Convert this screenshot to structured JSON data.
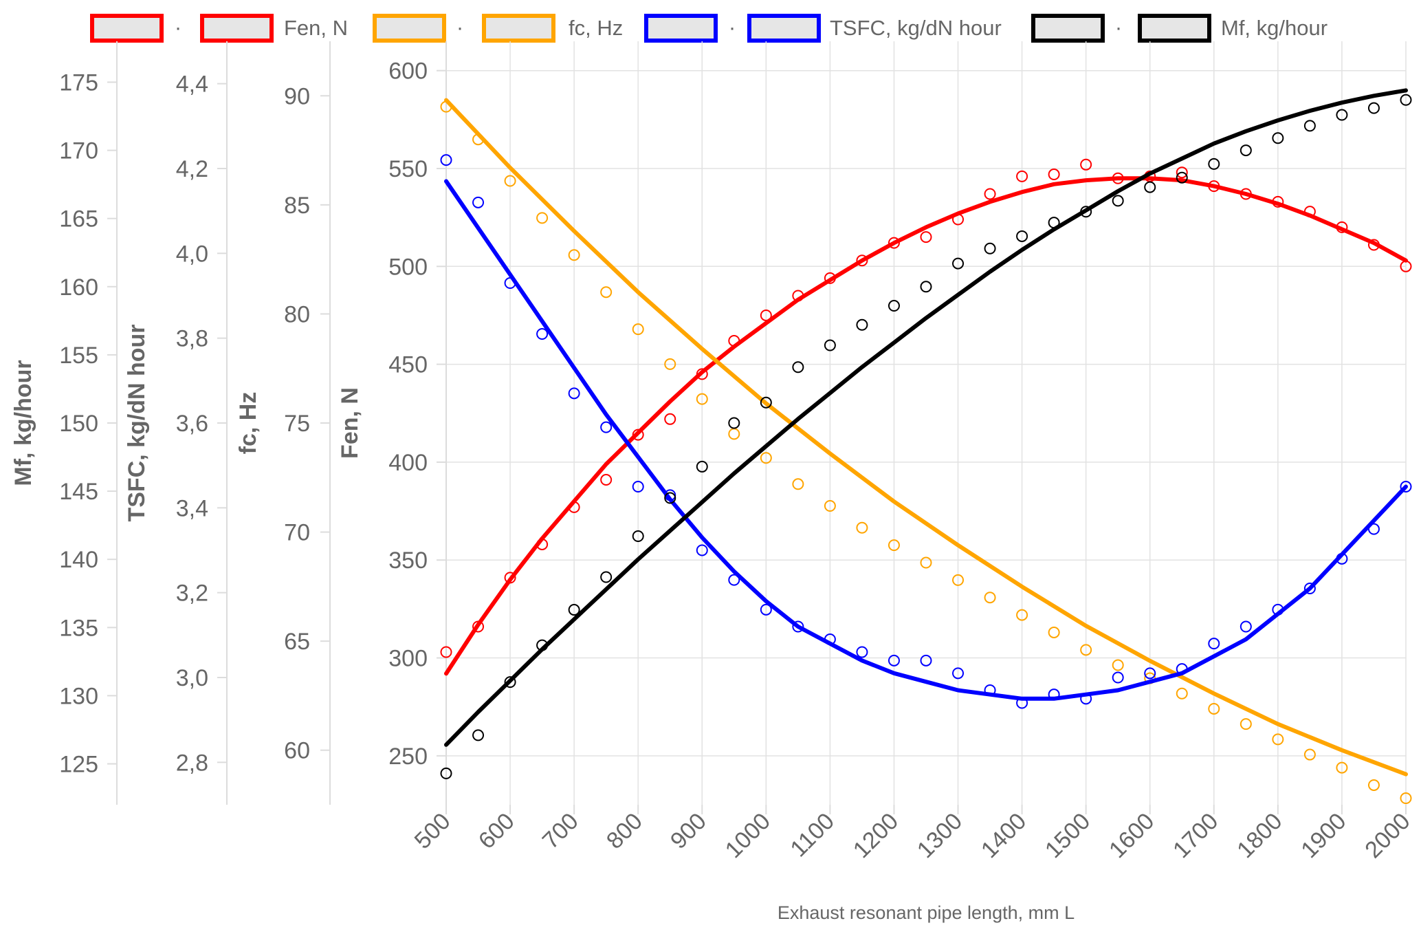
{
  "chart_data": {
    "type": "line",
    "x_title": "Exhaust resonant pipe length, mm L",
    "x_ticks": [
      500,
      600,
      700,
      800,
      900,
      1000,
      1100,
      1200,
      1300,
      1400,
      1500,
      1600,
      1700,
      1800,
      1900,
      2000
    ],
    "x_range": [
      500,
      2000
    ],
    "grid": true,
    "legend_position": "top",
    "legend": [
      {
        "marker_label": "·",
        "label": "Fen, N",
        "color": "#ff0000"
      },
      {
        "marker_label": "·",
        "label": "fc, Hz",
        "color": "#ffa500"
      },
      {
        "marker_label": "·",
        "label": "TSFC, kg/dN hour",
        "color": "#0000ff"
      },
      {
        "marker_label": "·",
        "label": "Mf, kg/hour",
        "color": "#000000"
      }
    ],
    "axes": {
      "mf": {
        "title": "Mf, kg/hour",
        "range": [
          122,
          178
        ],
        "ticks": [
          "125",
          "130",
          "135",
          "140",
          "145",
          "150",
          "155",
          "160",
          "165",
          "170",
          "175"
        ]
      },
      "tsfc": {
        "title": "TSFC, kg/dN hour",
        "range": [
          2.7,
          4.5
        ],
        "ticks": [
          "2,8",
          "3,0",
          "3,2",
          "3,4",
          "3,6",
          "3,8",
          "4,0",
          "4,2",
          "4,4"
        ]
      },
      "fc": {
        "title": "fc, Hz",
        "range": [
          57.5,
          92.5
        ],
        "ticks": [
          "60",
          "65",
          "70",
          "75",
          "80",
          "85",
          "90"
        ]
      },
      "fen": {
        "title": "Fen, N",
        "range": [
          225,
          615
        ],
        "ticks": [
          "250",
          "300",
          "350",
          "400",
          "450",
          "500",
          "550",
          "600"
        ]
      }
    },
    "series": [
      {
        "name": "Fen, N",
        "axis": "fen",
        "color": "#ff0000",
        "points": [
          [
            500,
            303
          ],
          [
            550,
            316
          ],
          [
            600,
            341
          ],
          [
            650,
            358
          ],
          [
            700,
            377
          ],
          [
            750,
            391
          ],
          [
            800,
            414
          ],
          [
            850,
            422
          ],
          [
            900,
            445
          ],
          [
            950,
            462
          ],
          [
            1000,
            475
          ],
          [
            1050,
            485
          ],
          [
            1100,
            494
          ],
          [
            1150,
            503
          ],
          [
            1200,
            512
          ],
          [
            1250,
            515
          ],
          [
            1300,
            524
          ],
          [
            1350,
            537
          ],
          [
            1400,
            546
          ],
          [
            1450,
            547
          ],
          [
            1500,
            552
          ],
          [
            1550,
            545
          ],
          [
            1600,
            546
          ],
          [
            1650,
            548
          ],
          [
            1700,
            541
          ],
          [
            1750,
            537
          ],
          [
            1800,
            533
          ],
          [
            1850,
            528
          ],
          [
            1900,
            520
          ],
          [
            1950,
            511
          ],
          [
            2000,
            500
          ]
        ],
        "fit": [
          [
            500,
            292
          ],
          [
            550,
            317
          ],
          [
            600,
            340
          ],
          [
            650,
            361
          ],
          [
            700,
            380
          ],
          [
            750,
            399
          ],
          [
            800,
            415
          ],
          [
            850,
            431
          ],
          [
            900,
            446
          ],
          [
            950,
            459
          ],
          [
            1000,
            471
          ],
          [
            1050,
            483
          ],
          [
            1100,
            493
          ],
          [
            1150,
            503
          ],
          [
            1200,
            512
          ],
          [
            1250,
            520
          ],
          [
            1300,
            527
          ],
          [
            1350,
            533
          ],
          [
            1400,
            538
          ],
          [
            1450,
            542
          ],
          [
            1500,
            544
          ],
          [
            1550,
            545
          ],
          [
            1600,
            545
          ],
          [
            1650,
            544
          ],
          [
            1700,
            541
          ],
          [
            1750,
            537
          ],
          [
            1800,
            532
          ],
          [
            1850,
            526
          ],
          [
            1900,
            519
          ],
          [
            1950,
            512
          ],
          [
            2000,
            503
          ]
        ]
      },
      {
        "name": "fc, Hz",
        "axis": "fc",
        "color": "#ffa500",
        "points": [
          [
            500,
            89.5
          ],
          [
            550,
            88.0
          ],
          [
            600,
            86.1
          ],
          [
            650,
            84.4
          ],
          [
            700,
            82.7
          ],
          [
            750,
            81.0
          ],
          [
            800,
            79.3
          ],
          [
            850,
            77.7
          ],
          [
            900,
            76.1
          ],
          [
            950,
            74.5
          ],
          [
            1000,
            73.4
          ],
          [
            1050,
            72.2
          ],
          [
            1100,
            71.2
          ],
          [
            1150,
            70.2
          ],
          [
            1200,
            69.4
          ],
          [
            1250,
            68.6
          ],
          [
            1300,
            67.8
          ],
          [
            1350,
            67.0
          ],
          [
            1400,
            66.2
          ],
          [
            1450,
            65.4
          ],
          [
            1500,
            64.6
          ],
          [
            1550,
            63.9
          ],
          [
            1600,
            63.3
          ],
          [
            1650,
            62.6
          ],
          [
            1700,
            61.9
          ],
          [
            1750,
            61.2
          ],
          [
            1800,
            60.5
          ],
          [
            1850,
            59.8
          ],
          [
            1900,
            59.2
          ],
          [
            1950,
            58.4
          ],
          [
            2000,
            57.8
          ]
        ],
        "fit": [
          [
            500,
            89.8
          ],
          [
            600,
            86.7
          ],
          [
            700,
            83.8
          ],
          [
            800,
            81.0
          ],
          [
            900,
            78.4
          ],
          [
            1000,
            75.9
          ],
          [
            1100,
            73.6
          ],
          [
            1200,
            71.4
          ],
          [
            1300,
            69.4
          ],
          [
            1400,
            67.5
          ],
          [
            1500,
            65.7
          ],
          [
            1600,
            64.1
          ],
          [
            1700,
            62.6
          ],
          [
            1800,
            61.2
          ],
          [
            1900,
            60.0
          ],
          [
            2000,
            58.9
          ]
        ]
      },
      {
        "name": "TSFC, kg/dN hour",
        "axis": "tsfc",
        "color": "#0000ff",
        "points": [
          [
            500,
            4.22
          ],
          [
            550,
            4.12
          ],
          [
            600,
            3.93
          ],
          [
            650,
            3.81
          ],
          [
            700,
            3.67
          ],
          [
            750,
            3.59
          ],
          [
            800,
            3.45
          ],
          [
            850,
            3.43
          ],
          [
            900,
            3.3
          ],
          [
            950,
            3.23
          ],
          [
            1000,
            3.16
          ],
          [
            1050,
            3.12
          ],
          [
            1100,
            3.09
          ],
          [
            1150,
            3.06
          ],
          [
            1200,
            3.04
          ],
          [
            1250,
            3.04
          ],
          [
            1300,
            3.01
          ],
          [
            1350,
            2.97
          ],
          [
            1400,
            2.94
          ],
          [
            1450,
            2.96
          ],
          [
            1500,
            2.95
          ],
          [
            1550,
            3.0
          ],
          [
            1600,
            3.01
          ],
          [
            1650,
            3.02
          ],
          [
            1700,
            3.08
          ],
          [
            1750,
            3.12
          ],
          [
            1800,
            3.16
          ],
          [
            1850,
            3.21
          ],
          [
            1900,
            3.28
          ],
          [
            1950,
            3.35
          ],
          [
            2000,
            3.45
          ]
        ],
        "fit": [
          [
            500,
            4.17
          ],
          [
            550,
            4.06
          ],
          [
            600,
            3.95
          ],
          [
            650,
            3.84
          ],
          [
            700,
            3.73
          ],
          [
            750,
            3.62
          ],
          [
            800,
            3.52
          ],
          [
            850,
            3.42
          ],
          [
            900,
            3.33
          ],
          [
            950,
            3.25
          ],
          [
            1000,
            3.18
          ],
          [
            1050,
            3.12
          ],
          [
            1100,
            3.08
          ],
          [
            1150,
            3.04
          ],
          [
            1200,
            3.01
          ],
          [
            1250,
            2.99
          ],
          [
            1300,
            2.97
          ],
          [
            1350,
            2.96
          ],
          [
            1400,
            2.95
          ],
          [
            1450,
            2.95
          ],
          [
            1500,
            2.96
          ],
          [
            1550,
            2.97
          ],
          [
            1600,
            2.99
          ],
          [
            1650,
            3.01
          ],
          [
            1700,
            3.05
          ],
          [
            1750,
            3.09
          ],
          [
            1800,
            3.15
          ],
          [
            1850,
            3.21
          ],
          [
            1900,
            3.29
          ],
          [
            1950,
            3.37
          ],
          [
            2000,
            3.45
          ]
        ]
      },
      {
        "name": "Mf, kg/hour",
        "axis": "mf",
        "color": "#000000",
        "points": [
          [
            500,
            124.3
          ],
          [
            550,
            127.1
          ],
          [
            600,
            131.0
          ],
          [
            650,
            133.7
          ],
          [
            700,
            136.3
          ],
          [
            750,
            138.7
          ],
          [
            800,
            141.7
          ],
          [
            850,
            144.5
          ],
          [
            900,
            146.8
          ],
          [
            950,
            150.0
          ],
          [
            1000,
            151.5
          ],
          [
            1050,
            154.1
          ],
          [
            1100,
            155.7
          ],
          [
            1150,
            157.2
          ],
          [
            1200,
            158.6
          ],
          [
            1250,
            160.0
          ],
          [
            1300,
            161.7
          ],
          [
            1350,
            162.8
          ],
          [
            1400,
            163.7
          ],
          [
            1450,
            164.7
          ],
          [
            1500,
            165.5
          ],
          [
            1550,
            166.3
          ],
          [
            1600,
            167.3
          ],
          [
            1650,
            168.0
          ],
          [
            1700,
            169.0
          ],
          [
            1750,
            170.0
          ],
          [
            1800,
            170.9
          ],
          [
            1850,
            171.8
          ],
          [
            1900,
            172.6
          ],
          [
            1950,
            173.1
          ],
          [
            2000,
            173.7
          ]
        ],
        "fit": [
          [
            500,
            126.4
          ],
          [
            550,
            128.8
          ],
          [
            600,
            131.1
          ],
          [
            650,
            133.4
          ],
          [
            700,
            135.6
          ],
          [
            750,
            137.8
          ],
          [
            800,
            140.0
          ],
          [
            850,
            142.1
          ],
          [
            900,
            144.2
          ],
          [
            950,
            146.3
          ],
          [
            1000,
            148.3
          ],
          [
            1050,
            150.3
          ],
          [
            1100,
            152.2
          ],
          [
            1150,
            154.1
          ],
          [
            1200,
            155.9
          ],
          [
            1250,
            157.7
          ],
          [
            1300,
            159.4
          ],
          [
            1350,
            161.1
          ],
          [
            1400,
            162.7
          ],
          [
            1450,
            164.2
          ],
          [
            1500,
            165.6
          ],
          [
            1550,
            167.0
          ],
          [
            1600,
            168.3
          ],
          [
            1650,
            169.4
          ],
          [
            1700,
            170.5
          ],
          [
            1750,
            171.4
          ],
          [
            1800,
            172.2
          ],
          [
            1850,
            172.9
          ],
          [
            1900,
            173.5
          ],
          [
            1950,
            174.0
          ],
          [
            2000,
            174.4
          ]
        ]
      }
    ]
  }
}
